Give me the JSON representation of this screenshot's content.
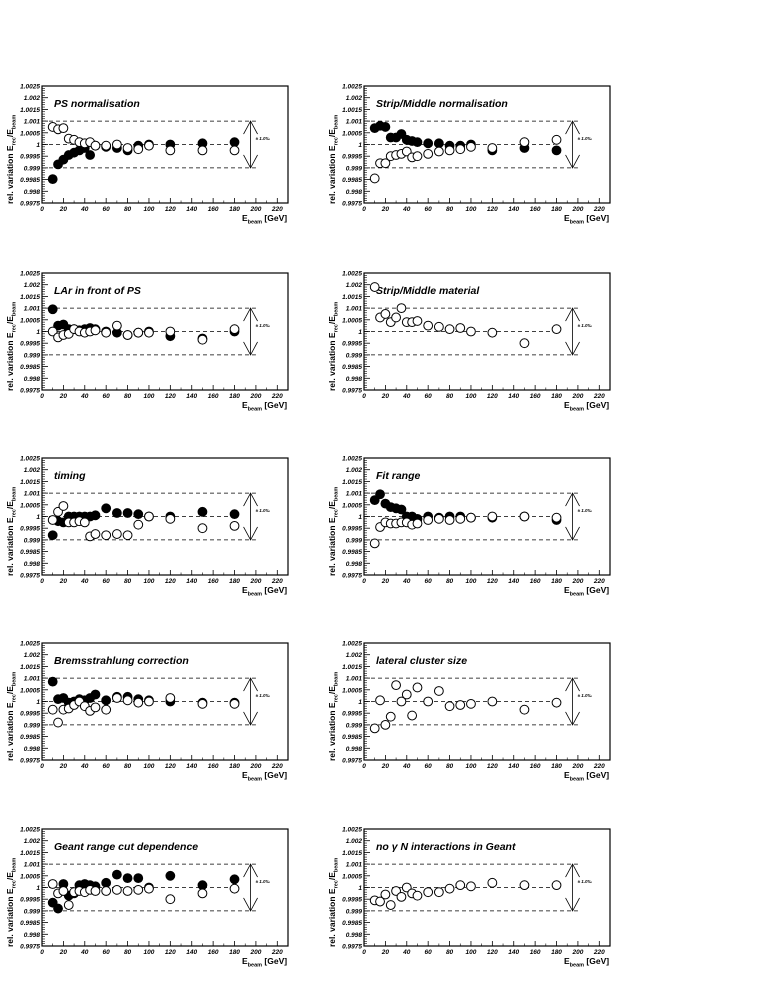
{
  "figure": {
    "ylabel_main": "rel. variation E",
    "ylabel_sub1": "rec",
    "ylabel_mid": "/E",
    "ylabel_sub2": "beam",
    "xlabel_main": "E",
    "xlabel_sub": "beam",
    "xlabel_unit": " [GeV]",
    "band_label": "± 1.0‰"
  },
  "chart_data": [
    {
      "type": "scatter",
      "title": "PS normalisation",
      "xlim": [
        0,
        230
      ],
      "ylim": [
        0.9975,
        1.0025
      ],
      "xticks": [
        "0",
        "20",
        "40",
        "60",
        "80",
        "100",
        "120",
        "140",
        "160",
        "180",
        "200",
        "220"
      ],
      "yticks": [
        "0.9975",
        "0.998",
        "0.9985",
        "0.999",
        "0.9995",
        "1",
        "1.0005",
        "1.001",
        "1.0015",
        "1.002",
        "1.0025"
      ],
      "band": [
        0.999,
        1.001
      ],
      "series": [
        {
          "marker": "filled",
          "x": [
            10,
            15,
            20,
            25,
            30,
            35,
            40,
            45,
            50,
            60,
            70,
            80,
            90,
            100,
            120,
            150,
            180
          ],
          "y": [
            0.99852,
            0.99915,
            0.99935,
            0.99955,
            0.99965,
            0.99975,
            0.99985,
            0.99955,
            0.99995,
            0.9999,
            0.99985,
            0.99975,
            0.99995,
            1.0,
            1.0,
            1.00005,
            1.0001
          ]
        },
        {
          "marker": "open",
          "x": [
            10,
            15,
            20,
            25,
            30,
            35,
            40,
            45,
            50,
            60,
            70,
            80,
            90,
            100,
            120,
            150,
            180
          ],
          "y": [
            1.00075,
            1.00065,
            1.0007,
            1.00025,
            1.0002,
            1.0001,
            1.00005,
            1.0001,
            0.99995,
            0.99995,
            1.0,
            0.99985,
            0.9998,
            0.99995,
            0.99975,
            0.99975,
            0.99975
          ]
        }
      ]
    },
    {
      "type": "scatter",
      "title": "Strip/Middle normalisation",
      "xlim": [
        0,
        230
      ],
      "ylim": [
        0.9975,
        1.0025
      ],
      "xticks": [
        "0",
        "20",
        "40",
        "60",
        "80",
        "100",
        "120",
        "140",
        "160",
        "180",
        "200",
        "220"
      ],
      "yticks": [
        "0.9975",
        "0.998",
        "0.9985",
        "0.999",
        "0.9995",
        "1",
        "1.0005",
        "1.001",
        "1.0015",
        "1.002",
        "1.0025"
      ],
      "band": [
        0.999,
        1.001
      ],
      "series": [
        {
          "marker": "filled",
          "x": [
            10,
            15,
            20,
            25,
            30,
            35,
            40,
            45,
            50,
            60,
            70,
            80,
            90,
            100,
            120,
            150,
            180
          ],
          "y": [
            1.0007,
            1.0008,
            1.00075,
            1.0003,
            1.0003,
            1.00045,
            1.0002,
            1.00015,
            1.0001,
            1.00005,
            1.00005,
            0.99995,
            0.99995,
            1.0,
            0.99975,
            0.99985,
            0.99975
          ]
        },
        {
          "marker": "open",
          "x": [
            10,
            15,
            20,
            25,
            30,
            35,
            40,
            45,
            50,
            60,
            70,
            80,
            90,
            100,
            120,
            150,
            180
          ],
          "y": [
            0.99855,
            0.9992,
            0.9992,
            0.9995,
            0.99955,
            0.9996,
            0.9997,
            0.99945,
            0.9995,
            0.9996,
            0.9997,
            0.99975,
            0.9998,
            0.9999,
            0.99985,
            1.0001,
            1.0002
          ]
        }
      ]
    },
    {
      "type": "scatter",
      "title": "LAr in front of PS",
      "xlim": [
        0,
        230
      ],
      "ylim": [
        0.9975,
        1.0025
      ],
      "xticks": [
        "0",
        "20",
        "40",
        "60",
        "80",
        "100",
        "120",
        "140",
        "160",
        "180",
        "200",
        "220"
      ],
      "yticks": [
        "0.9975",
        "0.998",
        "0.9985",
        "0.999",
        "0.9995",
        "1",
        "1.0005",
        "1.001",
        "1.0015",
        "1.002",
        "1.0025"
      ],
      "band": [
        0.999,
        1.001
      ],
      "series": [
        {
          "marker": "filled",
          "x": [
            10,
            15,
            20,
            25,
            30,
            35,
            40,
            45,
            50,
            60,
            70,
            80,
            90,
            100,
            120,
            150,
            180
          ],
          "y": [
            1.00095,
            1.00025,
            1.0003,
            1.0001,
            1.0001,
            1.00005,
            1.0001,
            1.00015,
            1.0001,
            1.0,
            0.99995,
            0.99985,
            0.99995,
            1.0,
            0.9998,
            0.9997,
            1.0
          ]
        },
        {
          "marker": "open",
          "x": [
            10,
            15,
            20,
            25,
            30,
            35,
            40,
            45,
            50,
            60,
            70,
            80,
            90,
            100,
            120,
            150,
            180
          ],
          "y": [
            1.0,
            0.99975,
            0.99985,
            0.9999,
            1.0001,
            1.0,
            0.99995,
            1.0,
            1.00005,
            0.99995,
            1.00025,
            0.99985,
            0.99995,
            0.99995,
            1.0,
            0.99965,
            1.0001
          ]
        }
      ]
    },
    {
      "type": "scatter",
      "title": "Strip/Middle material",
      "xlim": [
        0,
        230
      ],
      "ylim": [
        0.9975,
        1.0025
      ],
      "xticks": [
        "0",
        "20",
        "40",
        "60",
        "80",
        "100",
        "120",
        "140",
        "160",
        "180",
        "200",
        "220"
      ],
      "yticks": [
        "0.9975",
        "0.998",
        "0.9985",
        "0.999",
        "0.9995",
        "1",
        "1.0005",
        "1.001",
        "1.0015",
        "1.002",
        "1.0025"
      ],
      "band": [
        0.999,
        1.001
      ],
      "series": [
        {
          "marker": "open",
          "x": [
            10,
            15,
            20,
            25,
            30,
            35,
            40,
            45,
            50,
            60,
            70,
            80,
            90,
            100,
            120,
            150,
            180
          ],
          "y": [
            1.0019,
            1.0006,
            1.00075,
            1.0004,
            1.0006,
            1.001,
            1.0004,
            1.0004,
            1.00045,
            1.00025,
            1.0002,
            1.0001,
            1.00015,
            1.0,
            0.99995,
            0.9995,
            1.0001
          ]
        }
      ]
    },
    {
      "type": "scatter",
      "title": "timing",
      "xlim": [
        0,
        230
      ],
      "ylim": [
        0.9975,
        1.0025
      ],
      "xticks": [
        "0",
        "20",
        "40",
        "60",
        "80",
        "100",
        "120",
        "140",
        "160",
        "180",
        "200",
        "220"
      ],
      "yticks": [
        "0.9975",
        "0.998",
        "0.9985",
        "0.999",
        "0.9995",
        "1",
        "1.0005",
        "1.001",
        "1.0015",
        "1.002",
        "1.0025"
      ],
      "band": [
        0.999,
        1.001
      ],
      "series": [
        {
          "marker": "filled",
          "x": [
            10,
            15,
            20,
            25,
            30,
            35,
            40,
            45,
            50,
            60,
            70,
            80,
            90,
            100,
            120,
            150,
            180
          ],
          "y": [
            0.9992,
            0.9998,
            0.99975,
            1.0,
            1.0,
            1.0,
            1.0,
            1.0,
            1.00005,
            1.00035,
            1.00015,
            1.00015,
            1.0001,
            1.0,
            1.0,
            1.0002,
            1.0001
          ]
        },
        {
          "marker": "open",
          "x": [
            10,
            15,
            20,
            25,
            30,
            35,
            40,
            45,
            50,
            60,
            70,
            80,
            90,
            100,
            120,
            150,
            180
          ],
          "y": [
            0.99985,
            1.0002,
            1.00045,
            0.99975,
            0.99975,
            0.9998,
            0.99975,
            0.99915,
            0.99925,
            0.9992,
            0.99925,
            0.9992,
            0.99965,
            1.0,
            0.9999,
            0.9995,
            0.9996
          ]
        }
      ]
    },
    {
      "type": "scatter",
      "title": "Fit range",
      "xlim": [
        0,
        230
      ],
      "ylim": [
        0.9975,
        1.0025
      ],
      "xticks": [
        "0",
        "20",
        "40",
        "60",
        "80",
        "100",
        "120",
        "140",
        "160",
        "180",
        "200",
        "220"
      ],
      "yticks": [
        "0.9975",
        "0.998",
        "0.9985",
        "0.999",
        "0.9995",
        "1",
        "1.0005",
        "1.001",
        "1.0015",
        "1.002",
        "1.0025"
      ],
      "band": [
        0.999,
        1.001
      ],
      "series": [
        {
          "marker": "filled",
          "x": [
            10,
            15,
            20,
            25,
            30,
            35,
            40,
            45,
            50,
            60,
            70,
            80,
            90,
            100,
            120,
            150,
            180
          ],
          "y": [
            1.0007,
            1.00095,
            1.00055,
            1.0004,
            1.00035,
            1.0003,
            1.0,
            1.0,
            0.9999,
            1.0,
            0.99995,
            1.0,
            1.0,
            0.99995,
            0.99995,
            1.0,
            0.99985
          ]
        },
        {
          "marker": "open",
          "x": [
            10,
            15,
            20,
            25,
            30,
            35,
            40,
            45,
            50,
            60,
            70,
            80,
            90,
            100,
            120,
            150,
            180
          ],
          "y": [
            0.99885,
            0.99955,
            0.99975,
            0.9997,
            0.9997,
            0.99975,
            0.99975,
            0.99965,
            0.9997,
            0.99985,
            0.9999,
            0.99985,
            0.9999,
            0.99995,
            1.0,
            1.0,
            0.99995
          ]
        }
      ]
    },
    {
      "type": "scatter",
      "title": "Bremsstrahlung correction",
      "xlim": [
        0,
        230
      ],
      "ylim": [
        0.9975,
        1.0025
      ],
      "xticks": [
        "0",
        "20",
        "40",
        "60",
        "80",
        "100",
        "120",
        "140",
        "160",
        "180",
        "200",
        "220"
      ],
      "yticks": [
        "0.9975",
        "0.998",
        "0.9985",
        "0.999",
        "0.9995",
        "1",
        "1.0005",
        "1.001",
        "1.0015",
        "1.002",
        "1.0025"
      ],
      "band": [
        0.999,
        1.001
      ],
      "series": [
        {
          "marker": "filled",
          "x": [
            10,
            15,
            20,
            25,
            30,
            35,
            40,
            45,
            50,
            60,
            70,
            80,
            90,
            100,
            120,
            150,
            180
          ],
          "y": [
            1.00085,
            1.0001,
            1.00015,
            0.99995,
            1.0,
            1.0001,
            1.00005,
            1.00015,
            1.0003,
            1.00005,
            1.0002,
            1.0002,
            1.0001,
            1.00005,
            1.0,
            0.99995,
            0.99995
          ]
        },
        {
          "marker": "open",
          "x": [
            10,
            15,
            20,
            25,
            30,
            35,
            40,
            45,
            50,
            60,
            70,
            80,
            90,
            100,
            120,
            150,
            180
          ],
          "y": [
            0.99965,
            0.9991,
            0.99965,
            0.9997,
            0.99985,
            1.0,
            0.9998,
            0.9996,
            0.99975,
            0.99965,
            1.00015,
            1.00005,
            0.99995,
            1.0,
            1.00015,
            0.9999,
            0.9999
          ]
        }
      ]
    },
    {
      "type": "scatter",
      "title": "lateral cluster size",
      "xlim": [
        0,
        230
      ],
      "ylim": [
        0.9975,
        1.0025
      ],
      "xticks": [
        "0",
        "20",
        "40",
        "60",
        "80",
        "100",
        "120",
        "140",
        "160",
        "180",
        "200",
        "220"
      ],
      "yticks": [
        "0.9975",
        "0.998",
        "0.9985",
        "0.999",
        "0.9995",
        "1",
        "1.0005",
        "1.001",
        "1.0015",
        "1.002",
        "1.0025"
      ],
      "band": [
        0.999,
        1.001
      ],
      "series": [
        {
          "marker": "open",
          "x": [
            10,
            15,
            20,
            25,
            30,
            35,
            40,
            45,
            50,
            60,
            70,
            80,
            90,
            100,
            120,
            150,
            180
          ],
          "y": [
            0.99885,
            1.00005,
            0.999,
            0.99935,
            1.0007,
            1.0,
            1.0003,
            0.9994,
            1.0006,
            1.0,
            1.00045,
            0.9998,
            0.99985,
            0.9999,
            1.0,
            0.99965,
            0.99995
          ]
        }
      ]
    },
    {
      "type": "scatter",
      "title": "Geant range cut dependence",
      "xlim": [
        0,
        230
      ],
      "ylim": [
        0.9975,
        1.0025
      ],
      "xticks": [
        "0",
        "20",
        "40",
        "60",
        "80",
        "100",
        "120",
        "140",
        "160",
        "180",
        "200",
        "220"
      ],
      "yticks": [
        "0.9975",
        "0.998",
        "0.9985",
        "0.999",
        "0.9995",
        "1",
        "1.0005",
        "1.001",
        "1.0015",
        "1.002",
        "1.0025"
      ],
      "band": [
        0.999,
        1.001
      ],
      "series": [
        {
          "marker": "filled",
          "x": [
            10,
            15,
            20,
            25,
            30,
            35,
            40,
            45,
            50,
            60,
            70,
            80,
            90,
            100,
            120,
            150,
            180
          ],
          "y": [
            0.99935,
            0.9991,
            1.00015,
            0.99965,
            0.99975,
            1.0001,
            1.00015,
            1.0001,
            1.00005,
            1.0002,
            1.00055,
            1.0004,
            1.0004,
            1.0,
            1.0005,
            1.0001,
            1.00035
          ]
        },
        {
          "marker": "open",
          "x": [
            10,
            15,
            20,
            25,
            30,
            35,
            40,
            45,
            50,
            60,
            70,
            80,
            90,
            100,
            120,
            150,
            180
          ],
          "y": [
            1.00015,
            0.99975,
            0.99985,
            0.99925,
            0.9998,
            0.99985,
            0.9998,
            0.9999,
            0.99985,
            0.99985,
            0.9999,
            0.99985,
            0.9999,
            0.99995,
            0.9995,
            0.99975,
            0.99995
          ]
        }
      ]
    },
    {
      "type": "scatter",
      "title": "no γ N interactions in Geant",
      "xlim": [
        0,
        230
      ],
      "ylim": [
        0.9975,
        1.0025
      ],
      "xticks": [
        "0",
        "20",
        "40",
        "60",
        "80",
        "100",
        "120",
        "140",
        "160",
        "180",
        "200",
        "220"
      ],
      "yticks": [
        "0.9975",
        "0.998",
        "0.9985",
        "0.999",
        "0.9995",
        "1",
        "1.0005",
        "1.001",
        "1.0015",
        "1.002",
        "1.0025"
      ],
      "band": [
        0.999,
        1.001
      ],
      "series": [
        {
          "marker": "open",
          "x": [
            10,
            15,
            20,
            25,
            30,
            35,
            40,
            45,
            50,
            60,
            70,
            80,
            90,
            100,
            120,
            150,
            180
          ],
          "y": [
            0.99945,
            0.9994,
            0.9997,
            0.99925,
            0.99985,
            0.9996,
            1.0,
            0.99975,
            0.99965,
            0.9998,
            0.9998,
            0.99995,
            1.0001,
            1.00005,
            1.0002,
            1.0001,
            1.0001
          ]
        }
      ]
    }
  ]
}
